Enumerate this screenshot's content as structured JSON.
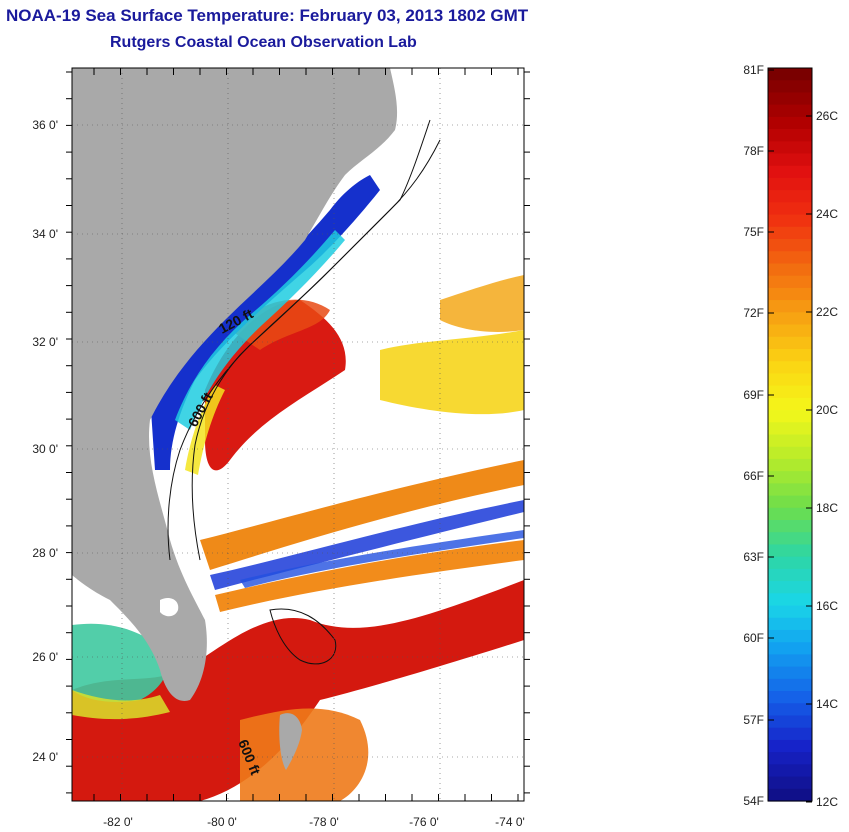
{
  "title": {
    "line1": "NOAA-19 Sea Surface Temperature:  February 03, 2013 1802 GMT",
    "line2": "Rutgers Coastal Ocean Observation Lab"
  },
  "map": {
    "lon_labels": [
      "-82 0'",
      "-80 0'",
      "-78 0'",
      "-76 0'",
      "-74 0'"
    ],
    "lat_labels": [
      "36 0'",
      "34 0'",
      "32 0'",
      "30 0'",
      "28 0'",
      "26 0'",
      "24 0'"
    ],
    "contour_labels": [
      "120 ft",
      "600 ft",
      "600 ft"
    ],
    "land_color": "#a9a9a9",
    "cloud_color": "#ffffff"
  },
  "colorbar": {
    "fahrenheit_labels": [
      "81F",
      "78F",
      "75F",
      "72F",
      "69F",
      "66F",
      "63F",
      "60F",
      "57F",
      "54F"
    ],
    "celsius_labels": [
      "26C",
      "24C",
      "22C",
      "20C",
      "18C",
      "16C",
      "14C",
      "12C"
    ],
    "colors": [
      "#7a0000",
      "#b00000",
      "#e01010",
      "#f03010",
      "#f26a10",
      "#f7a012",
      "#fbd313",
      "#f4f71a",
      "#b8ec2a",
      "#6fde4a",
      "#2fd6a2",
      "#1ad6e8",
      "#129ef0",
      "#1560e8",
      "#1622c8",
      "#10108a"
    ]
  }
}
